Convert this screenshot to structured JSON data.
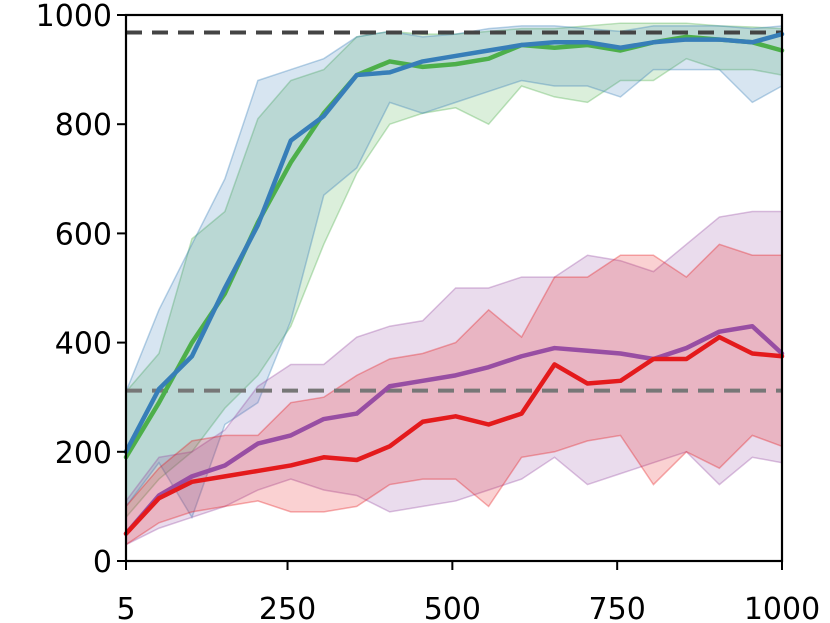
{
  "chart_data": {
    "type": "line",
    "title": "",
    "xlabel": "",
    "ylabel": "",
    "xlim": [
      5,
      1000
    ],
    "ylim": [
      0,
      1000
    ],
    "x_ticks": [
      5,
      250,
      500,
      750,
      1000
    ],
    "y_ticks": [
      0,
      200,
      400,
      600,
      800,
      1000
    ],
    "grid": false,
    "legend": "none",
    "x": [
      5,
      55,
      105,
      155,
      205,
      255,
      305,
      355,
      405,
      455,
      505,
      555,
      605,
      655,
      705,
      755,
      805,
      855,
      905,
      955,
      1000
    ],
    "reference_lines": [
      {
        "y": 968,
        "color": "#444444",
        "style": "dashed"
      },
      {
        "y": 312,
        "color": "#777777",
        "style": "dashed"
      }
    ],
    "series": [
      {
        "color": "#4daf4a",
        "values": [
          190,
          290,
          400,
          490,
          620,
          730,
          820,
          890,
          915,
          905,
          910,
          920,
          945,
          940,
          945,
          935,
          950,
          960,
          955,
          950,
          935
        ],
        "upper": [
          310,
          380,
          590,
          640,
          810,
          880,
          900,
          960,
          970,
          965,
          965,
          970,
          975,
          975,
          980,
          985,
          985,
          985,
          980,
          978,
          975
        ],
        "lower": [
          80,
          150,
          200,
          280,
          340,
          430,
          580,
          710,
          800,
          820,
          830,
          800,
          870,
          850,
          840,
          880,
          880,
          920,
          900,
          900,
          890
        ]
      },
      {
        "color": "#377eb8",
        "values": [
          200,
          315,
          375,
          500,
          615,
          770,
          815,
          890,
          895,
          915,
          925,
          935,
          945,
          950,
          950,
          940,
          950,
          955,
          955,
          950,
          965
        ],
        "upper": [
          310,
          460,
          580,
          700,
          880,
          900,
          920,
          960,
          970,
          960,
          965,
          975,
          980,
          980,
          975,
          970,
          980,
          980,
          980,
          975,
          980
        ],
        "lower": [
          100,
          180,
          80,
          250,
          290,
          440,
          670,
          720,
          840,
          820,
          840,
          860,
          880,
          870,
          870,
          850,
          900,
          900,
          900,
          840,
          870
        ]
      },
      {
        "color": "#984ea3",
        "values": [
          50,
          120,
          155,
          175,
          215,
          230,
          260,
          270,
          320,
          330,
          340,
          355,
          375,
          390,
          385,
          380,
          370,
          390,
          420,
          430,
          380
        ],
        "upper": [
          110,
          190,
          200,
          240,
          320,
          360,
          360,
          410,
          430,
          440,
          500,
          500,
          520,
          520,
          560,
          550,
          530,
          580,
          630,
          640,
          640
        ],
        "lower": [
          30,
          60,
          80,
          100,
          130,
          150,
          130,
          120,
          90,
          100,
          110,
          130,
          150,
          190,
          140,
          160,
          180,
          200,
          140,
          190,
          180
        ]
      },
      {
        "color": "#e41a1c",
        "values": [
          50,
          115,
          145,
          155,
          165,
          175,
          190,
          185,
          210,
          255,
          265,
          250,
          270,
          360,
          325,
          330,
          370,
          370,
          410,
          380,
          375
        ],
        "upper": [
          100,
          170,
          220,
          230,
          230,
          290,
          300,
          340,
          370,
          380,
          400,
          460,
          410,
          520,
          520,
          560,
          560,
          520,
          580,
          560,
          560
        ],
        "lower": [
          30,
          70,
          90,
          100,
          110,
          90,
          90,
          100,
          140,
          150,
          150,
          100,
          190,
          200,
          220,
          230,
          140,
          200,
          170,
          230,
          210
        ]
      }
    ]
  }
}
